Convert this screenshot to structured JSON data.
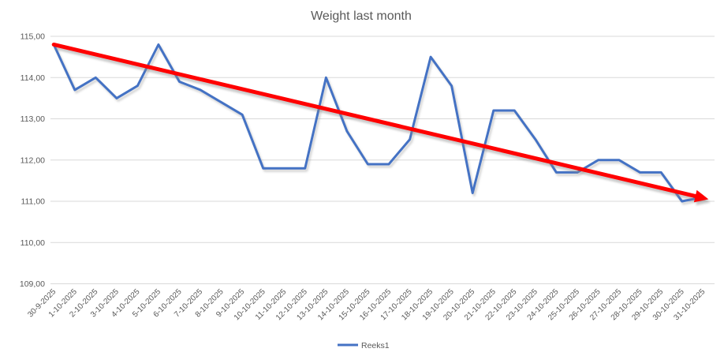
{
  "chart_data": {
    "type": "line",
    "title": "Weight last month",
    "legend": {
      "position": "bottom",
      "entries": [
        "Reeks1"
      ]
    },
    "categories": [
      "30-9-2025",
      "1-10-2025",
      "2-10-2025",
      "3-10-2025",
      "4-10-2025",
      "5-10-2025",
      "6-10-2025",
      "7-10-2025",
      "8-10-2025",
      "9-10-2025",
      "10-10-2025",
      "11-10-2025",
      "12-10-2025",
      "13-10-2025",
      "14-10-2025",
      "15-10-2025",
      "16-10-2025",
      "17-10-2025",
      "18-10-2025",
      "19-10-2025",
      "20-10-2025",
      "21-10-2025",
      "22-10-2025",
      "23-10-2025",
      "24-10-2025",
      "25-10-2025",
      "26-10-2025",
      "27-10-2025",
      "28-10-2025",
      "29-10-2025",
      "30-10-2025",
      "31-10-2025"
    ],
    "series": [
      {
        "name": "Reeks1",
        "color": "#4472C4",
        "values": [
          114.8,
          113.7,
          114.0,
          113.5,
          113.8,
          114.8,
          113.9,
          113.7,
          113.4,
          113.1,
          111.8,
          111.8,
          111.8,
          114.0,
          112.7,
          111.9,
          111.9,
          112.5,
          114.5,
          113.8,
          111.2,
          113.2,
          113.2,
          112.5,
          111.7,
          111.7,
          112.0,
          112.0,
          111.7,
          111.7,
          111.0,
          111.1
        ]
      }
    ],
    "trendline": {
      "color": "#FF0000",
      "start_value": 114.8,
      "end_value": 111.05,
      "style": "arrow-down-right"
    },
    "y_axis": {
      "min": 109,
      "max": 115,
      "step": 1,
      "tick_labels": [
        "109,00",
        "110,00",
        "111,00",
        "112,00",
        "113,00",
        "114,00",
        "115,00"
      ]
    },
    "x_axis": {
      "label_rotation_deg": 45
    },
    "grid": true,
    "colors": {
      "gridline": "#D9D9D9",
      "text": "#595959",
      "background": "#FFFFFF"
    }
  }
}
